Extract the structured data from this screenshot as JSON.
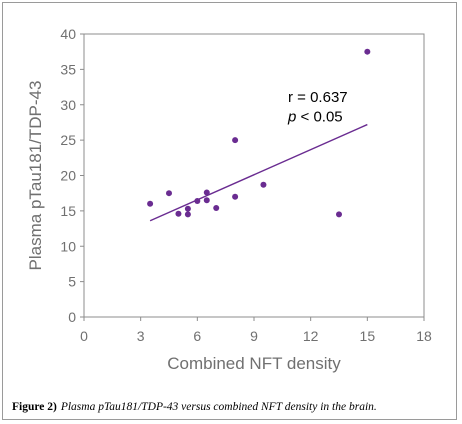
{
  "chart_data": {
    "type": "scatter",
    "title": "",
    "xlabel": "Combined NFT density",
    "ylabel": "Plasma pTau181/TDP-43",
    "xlim": [
      0,
      18
    ],
    "ylim": [
      0,
      40
    ],
    "x_ticks": [
      "0",
      "3",
      "6",
      "9",
      "12",
      "15",
      "18"
    ],
    "y_ticks": [
      "0",
      "5",
      "10",
      "15",
      "20",
      "25",
      "30",
      "35",
      "40"
    ],
    "grid": false,
    "marker_color": "#6a2c91",
    "points": [
      {
        "x": 3.5,
        "y": 16.0
      },
      {
        "x": 4.5,
        "y": 17.5
      },
      {
        "x": 5.0,
        "y": 14.6
      },
      {
        "x": 5.5,
        "y": 14.5
      },
      {
        "x": 5.5,
        "y": 15.3
      },
      {
        "x": 6.0,
        "y": 16.4
      },
      {
        "x": 6.5,
        "y": 16.5
      },
      {
        "x": 6.5,
        "y": 17.6
      },
      {
        "x": 7.0,
        "y": 15.4
      },
      {
        "x": 8.0,
        "y": 17.0
      },
      {
        "x": 8.0,
        "y": 25.0
      },
      {
        "x": 9.5,
        "y": 18.7
      },
      {
        "x": 13.5,
        "y": 14.5
      },
      {
        "x": 15.0,
        "y": 37.5
      }
    ],
    "trendline": {
      "x": [
        3.5,
        15.0
      ],
      "y": [
        13.6,
        27.2
      ]
    },
    "annotations": [
      {
        "text": "r = 0.637",
        "at": [
          10.8,
          30.4
        ]
      },
      {
        "italic": "p",
        "text": " < 0.05",
        "at": [
          10.8,
          27.6
        ]
      }
    ]
  },
  "caption": {
    "label": "Figure 2)",
    "text": "Plasma pTau181/TDP-43 versus combined NFT density in the brain."
  }
}
